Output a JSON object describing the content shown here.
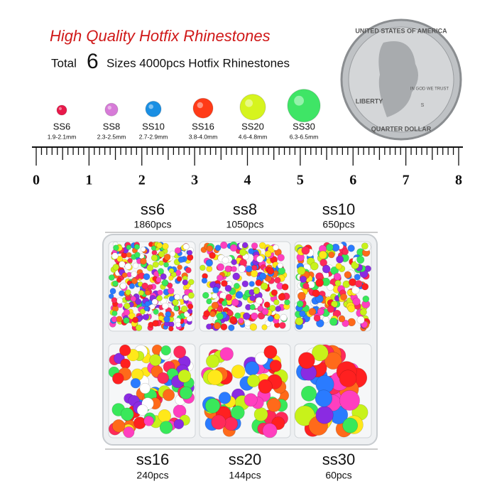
{
  "header": {
    "title": "High Quality Hotfix Rhinestones",
    "subtitle_start": "Total",
    "subtitle_number": "6",
    "subtitle_end": "Sizes 4000pcs Hotfix Rhinestones"
  },
  "sizes": [
    {
      "label": "SS6",
      "range": "1.9-2.1mm"
    },
    {
      "label": "SS8",
      "range": "2.3-2.5mm"
    },
    {
      "label": "SS10",
      "range": "2.7-2.9mm"
    },
    {
      "label": "SS16",
      "range": "3.8-4.0mm"
    },
    {
      "label": "SS20",
      "range": "4.6-4.8mm"
    },
    {
      "label": "SS30",
      "range": "6.3-6.5mm"
    }
  ],
  "coin": {
    "top": "UNITED STATES OF AMERICA",
    "liberty": "LIBERTY",
    "motto": "IN GOD WE TRUST",
    "bottom": "QUARTER DOLLAR",
    "mint": "S"
  },
  "ruler": {
    "labels": [
      0,
      1,
      2,
      3,
      4,
      5,
      6,
      7,
      8
    ]
  },
  "compartments": [
    {
      "name": "ss6",
      "count": "1860pcs"
    },
    {
      "name": "ss8",
      "count": "1050pcs"
    },
    {
      "name": "ss10",
      "count": "650pcs"
    },
    {
      "name": "ss16",
      "count": "240pcs"
    },
    {
      "name": "ss20",
      "count": "144pcs"
    },
    {
      "name": "ss30",
      "count": "60pcs"
    }
  ]
}
